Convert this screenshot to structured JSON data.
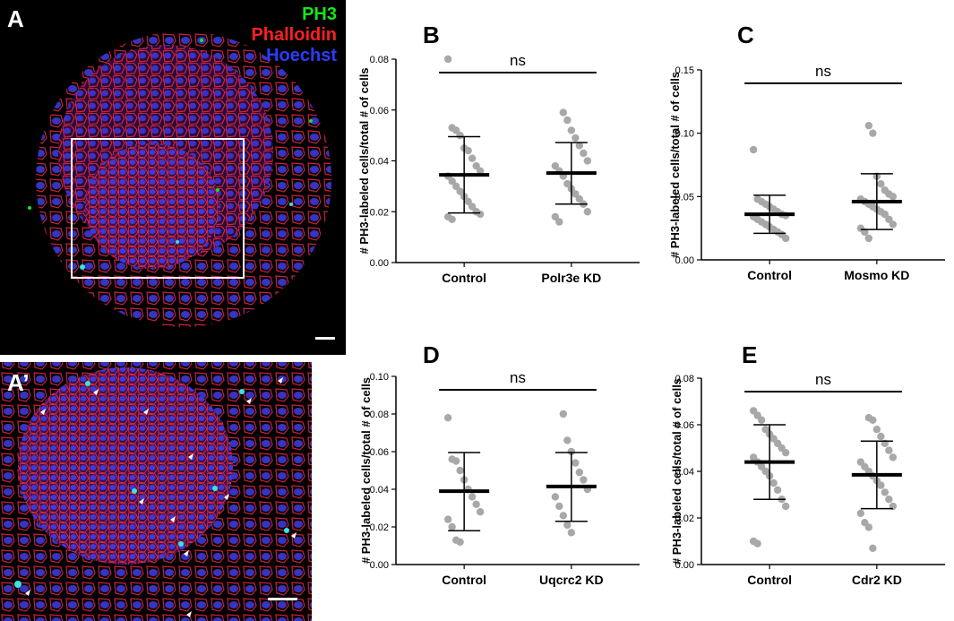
{
  "micrographs": [
    {
      "label": "A",
      "legend": [
        {
          "text": "PH3",
          "color": "#19e619"
        },
        {
          "text": "Phalloidin",
          "color": "#ff2020"
        },
        {
          "text": "Hoechst",
          "color": "#2a3cff"
        }
      ]
    },
    {
      "label": "A’",
      "legend": []
    }
  ],
  "colors": {
    "point": "#a8a8a8",
    "bar": "#000000",
    "background": "#ffffff"
  },
  "chart_data": [
    {
      "panel": "B",
      "type": "scatter",
      "ylabel": "# PH3-labeled cells/total # of cells",
      "ylim": [
        0,
        0.08
      ],
      "yticks": [
        0.0,
        0.02,
        0.04,
        0.06,
        0.08
      ],
      "tick_decimals": 2,
      "categories": [
        "Control",
        "Polr3e KD"
      ],
      "significance": "ns",
      "series": [
        {
          "name": "Control",
          "mean": 0.0345,
          "sd_low": 0.0195,
          "sd_high": 0.0495,
          "values": [
            0.08,
            0.053,
            0.052,
            0.05,
            0.045,
            0.044,
            0.041,
            0.038,
            0.036,
            0.034,
            0.032,
            0.03,
            0.028,
            0.026,
            0.024,
            0.022,
            0.02,
            0.019,
            0.018,
            0.017
          ]
        },
        {
          "name": "Polr3e KD",
          "mean": 0.0352,
          "sd_low": 0.023,
          "sd_high": 0.0472,
          "values": [
            0.059,
            0.056,
            0.052,
            0.049,
            0.046,
            0.043,
            0.04,
            0.038,
            0.036,
            0.034,
            0.031,
            0.029,
            0.027,
            0.025,
            0.023,
            0.02,
            0.018,
            0.016
          ]
        }
      ]
    },
    {
      "panel": "C",
      "type": "scatter",
      "ylabel": "# PH3-labeled cells/total # of cells",
      "ylim": [
        0,
        0.15
      ],
      "yticks": [
        0.0,
        0.05,
        0.1,
        0.15
      ],
      "tick_decimals": 2,
      "categories": [
        "Control",
        "Mosmo KD"
      ],
      "significance": "ns",
      "series": [
        {
          "name": "Control",
          "mean": 0.036,
          "sd_low": 0.021,
          "sd_high": 0.051,
          "values": [
            0.087,
            0.048,
            0.046,
            0.044,
            0.042,
            0.04,
            0.038,
            0.036,
            0.035,
            0.034,
            0.032,
            0.03,
            0.028,
            0.026,
            0.024,
            0.022,
            0.02,
            0.017
          ]
        },
        {
          "name": "Mosmo KD",
          "mean": 0.046,
          "sd_low": 0.024,
          "sd_high": 0.068,
          "values": [
            0.106,
            0.1,
            0.066,
            0.06,
            0.055,
            0.052,
            0.05,
            0.048,
            0.046,
            0.044,
            0.042,
            0.04,
            0.038,
            0.036,
            0.032,
            0.028,
            0.025,
            0.022,
            0.017
          ]
        }
      ]
    },
    {
      "panel": "D",
      "type": "scatter",
      "ylabel": "# PH3-labeled cells/total # of cells",
      "ylim": [
        0,
        0.1
      ],
      "yticks": [
        0.0,
        0.02,
        0.04,
        0.06,
        0.08,
        0.1
      ],
      "tick_decimals": 2,
      "categories": [
        "Control",
        "Uqcrc2 KD"
      ],
      "significance": "ns",
      "series": [
        {
          "name": "Control",
          "mean": 0.039,
          "sd_low": 0.018,
          "sd_high": 0.0595,
          "values": [
            0.078,
            0.056,
            0.055,
            0.05,
            0.045,
            0.04,
            0.036,
            0.032,
            0.028,
            0.024,
            0.02,
            0.013,
            0.012
          ]
        },
        {
          "name": "Uqcrc2 KD",
          "mean": 0.0415,
          "sd_low": 0.023,
          "sd_high": 0.0595,
          "values": [
            0.08,
            0.066,
            0.06,
            0.054,
            0.049,
            0.045,
            0.04,
            0.036,
            0.031,
            0.026,
            0.021,
            0.017
          ]
        }
      ]
    },
    {
      "panel": "E",
      "type": "scatter",
      "ylabel": "# PH3-labeled cells/total # of cells",
      "ylim": [
        0,
        0.08
      ],
      "yticks": [
        0.0,
        0.02,
        0.04,
        0.06,
        0.08
      ],
      "tick_decimals": 2,
      "categories": [
        "Control",
        "Cdr2 KD"
      ],
      "significance": "ns",
      "series": [
        {
          "name": "Control",
          "mean": 0.044,
          "sd_low": 0.028,
          "sd_high": 0.06,
          "values": [
            0.066,
            0.064,
            0.062,
            0.058,
            0.056,
            0.054,
            0.052,
            0.05,
            0.048,
            0.046,
            0.044,
            0.042,
            0.04,
            0.038,
            0.035,
            0.032,
            0.028,
            0.025,
            0.01,
            0.009
          ]
        },
        {
          "name": "Cdr2 KD",
          "mean": 0.0385,
          "sd_low": 0.024,
          "sd_high": 0.053,
          "values": [
            0.063,
            0.062,
            0.058,
            0.055,
            0.052,
            0.049,
            0.046,
            0.044,
            0.042,
            0.04,
            0.038,
            0.036,
            0.034,
            0.031,
            0.028,
            0.025,
            0.022,
            0.018,
            0.016,
            0.007
          ]
        }
      ]
    }
  ]
}
